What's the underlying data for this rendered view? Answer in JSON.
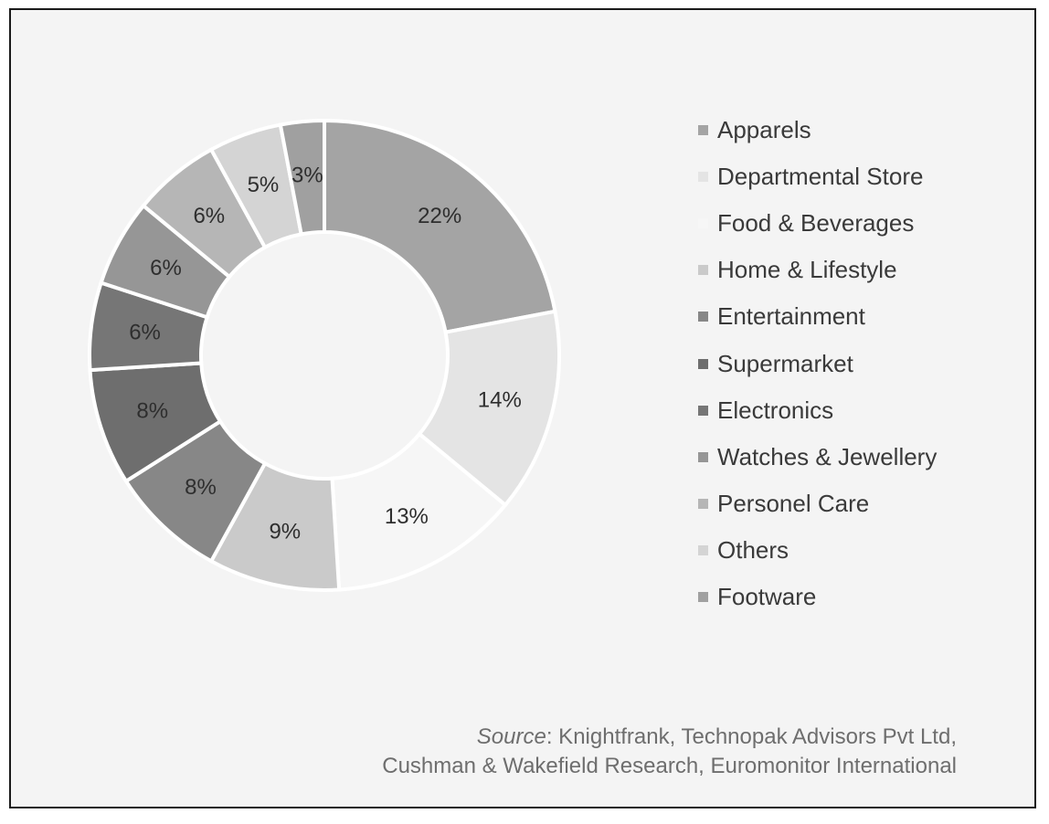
{
  "chart_data": {
    "type": "pie",
    "variant": "donut",
    "categories": [
      "Apparels",
      "Departmental Store",
      "Food & Beverages",
      "Home & Lifestyle",
      "Entertainment",
      "Supermarket",
      "Electronics",
      "Watches & Jewellery",
      "Personel Care",
      "Others",
      "Footware"
    ],
    "values": [
      22,
      14,
      13,
      9,
      8,
      8,
      6,
      6,
      6,
      5,
      3
    ],
    "labels": [
      "22%",
      "14%",
      "13%",
      "9%",
      "8%",
      "8%",
      "6%",
      "6%",
      "6%",
      "5%",
      "3%"
    ],
    "colors": [
      "#a4a4a4",
      "#e4e4e4",
      "#f6f6f6",
      "#cacaca",
      "#878787",
      "#6e6e6e",
      "#767676",
      "#969696",
      "#b6b6b6",
      "#d4d4d4",
      "#a0a0a0"
    ],
    "legend_position": "right"
  },
  "source": {
    "label": "Source",
    "line1_rest": ": Knightfrank, Technopak Advisors Pvt Ltd,",
    "line2": "Cushman & Wakefield Research, Euromonitor International"
  }
}
